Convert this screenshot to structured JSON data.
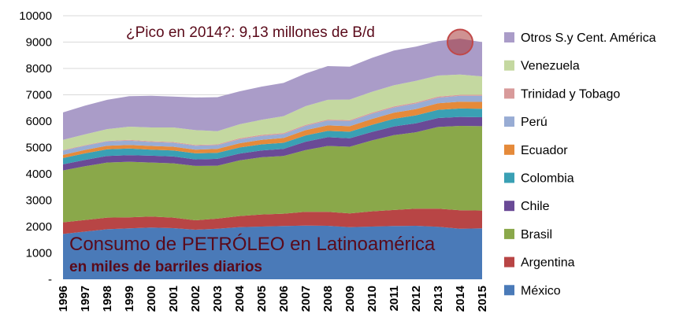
{
  "chart_data": {
    "type": "area",
    "stacked": true,
    "title": "Consumo de PETRÓLEO en Latinoamérica",
    "subtitle": "en miles de barriles diarios",
    "annotation": "¿Pico en 2014?: 9,13 millones de B/d",
    "annotation_point": {
      "x": "2014",
      "y": 9000
    },
    "ylim": [
      0,
      10000
    ],
    "y_ticks": [
      "-",
      "1000",
      "2000",
      "3000",
      "4000",
      "5000",
      "6000",
      "7000",
      "8000",
      "9000",
      "10000"
    ],
    "y_tick_values": [
      0,
      1000,
      2000,
      3000,
      4000,
      5000,
      6000,
      7000,
      8000,
      9000,
      10000
    ],
    "grid": true,
    "legend_position": "right",
    "categories": [
      "1996",
      "1997",
      "1998",
      "1999",
      "2000",
      "2001",
      "2002",
      "2003",
      "2004",
      "2005",
      "2006",
      "2007",
      "2008",
      "2009",
      "2010",
      "2011",
      "2012",
      "2013",
      "2014",
      "2015"
    ],
    "series": [
      {
        "name": "México",
        "color": "#4a7ab8",
        "values": [
          1720,
          1810,
          1900,
          1930,
          1960,
          1940,
          1880,
          1920,
          1980,
          2000,
          2020,
          2040,
          2030,
          1980,
          2000,
          2020,
          2030,
          1990,
          1920,
          1930
        ]
      },
      {
        "name": "Argentina",
        "color": "#b84545",
        "values": [
          440,
          440,
          440,
          420,
          420,
          400,
          360,
          380,
          420,
          460,
          470,
          520,
          530,
          520,
          580,
          610,
          650,
          690,
          700,
          680
        ]
      },
      {
        "name": "Brasil",
        "color": "#8aa84a",
        "values": [
          1970,
          2040,
          2090,
          2110,
          2050,
          2060,
          2060,
          2010,
          2110,
          2170,
          2190,
          2340,
          2500,
          2530,
          2690,
          2840,
          2900,
          3100,
          3200,
          3200
        ]
      },
      {
        "name": "Chile",
        "color": "#6a4a96",
        "values": [
          230,
          240,
          250,
          250,
          260,
          260,
          250,
          260,
          260,
          260,
          270,
          320,
          330,
          320,
          320,
          330,
          340,
          340,
          340,
          340
        ]
      },
      {
        "name": "Colombia",
        "color": "#3aa0b4",
        "values": [
          240,
          250,
          250,
          250,
          230,
          230,
          230,
          230,
          230,
          230,
          230,
          240,
          240,
          250,
          270,
          290,
          300,
          310,
          320,
          320
        ]
      },
      {
        "name": "Ecuador",
        "color": "#e58a3a",
        "values": [
          120,
          130,
          140,
          140,
          140,
          140,
          140,
          150,
          160,
          170,
          180,
          200,
          210,
          210,
          220,
          230,
          240,
          250,
          260,
          260
        ]
      },
      {
        "name": "Perú",
        "color": "#98acd4",
        "values": [
          160,
          160,
          160,
          160,
          150,
          150,
          150,
          140,
          150,
          150,
          150,
          160,
          180,
          190,
          200,
          200,
          210,
          210,
          220,
          230
        ]
      },
      {
        "name": "Trinidad y Tobago",
        "color": "#d89a9a",
        "values": [
          20,
          20,
          20,
          30,
          30,
          30,
          30,
          30,
          40,
          40,
          40,
          40,
          40,
          40,
          40,
          40,
          40,
          40,
          40,
          40
        ]
      },
      {
        "name": "Venezuela",
        "color": "#c4d8a0",
        "values": [
          390,
          410,
          450,
          500,
          520,
          550,
          560,
          500,
          530,
          570,
          640,
          710,
          750,
          780,
          790,
          800,
          820,
          800,
          770,
          700
        ]
      },
      {
        "name": "Otros S.y Cent. América",
        "color": "#aa9cc8",
        "values": [
          1040,
          1090,
          1110,
          1160,
          1200,
          1170,
          1240,
          1290,
          1250,
          1260,
          1260,
          1240,
          1280,
          1250,
          1290,
          1320,
          1300,
          1310,
          1360,
          1300
        ]
      }
    ]
  }
}
